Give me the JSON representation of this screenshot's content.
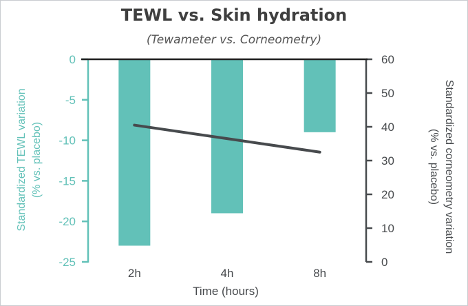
{
  "chart_data": {
    "type": "bar",
    "title": "TEWL vs. Skin hydration",
    "subtitle": "(Tewameter vs. Corneometry)",
    "categories": [
      "2h",
      "4h",
      "8h"
    ],
    "xlabel": "Time (hours)",
    "series": [
      {
        "name": "Standardized TEWL variation (% vs. placebo)",
        "kind": "bar",
        "axis": "left",
        "values": [
          -23,
          -19,
          -9
        ]
      },
      {
        "name": "Standardized corneometry variation (% vs. placebo)",
        "kind": "line",
        "axis": "right",
        "values": [
          40.5,
          36.5,
          32.5
        ]
      }
    ],
    "left_axis": {
      "label_line1": "Standardized  TEWL variation",
      "label_line2": "(% vs. placebo)",
      "ylim": [
        -25,
        0
      ],
      "ticks": [
        0,
        -5,
        -10,
        -15,
        -20,
        -25
      ],
      "tick_labels": [
        "0",
        "-5",
        "-10",
        "-15",
        "-20",
        "-25"
      ]
    },
    "right_axis": {
      "label_line1": "Standardized  corneometry variation",
      "label_line2": "(% vs. placebo)",
      "ylim": [
        0,
        60
      ],
      "ticks": [
        0,
        10,
        20,
        30,
        40,
        50,
        60
      ],
      "tick_labels": [
        "0",
        "10",
        "20",
        "30",
        "40",
        "50",
        "60"
      ]
    },
    "colors": {
      "bar": "#62c1b8",
      "line": "#474a4d",
      "left_axis": "#62c1b8",
      "right_axis": "#474a4d"
    },
    "grid": false,
    "legend": "none"
  }
}
